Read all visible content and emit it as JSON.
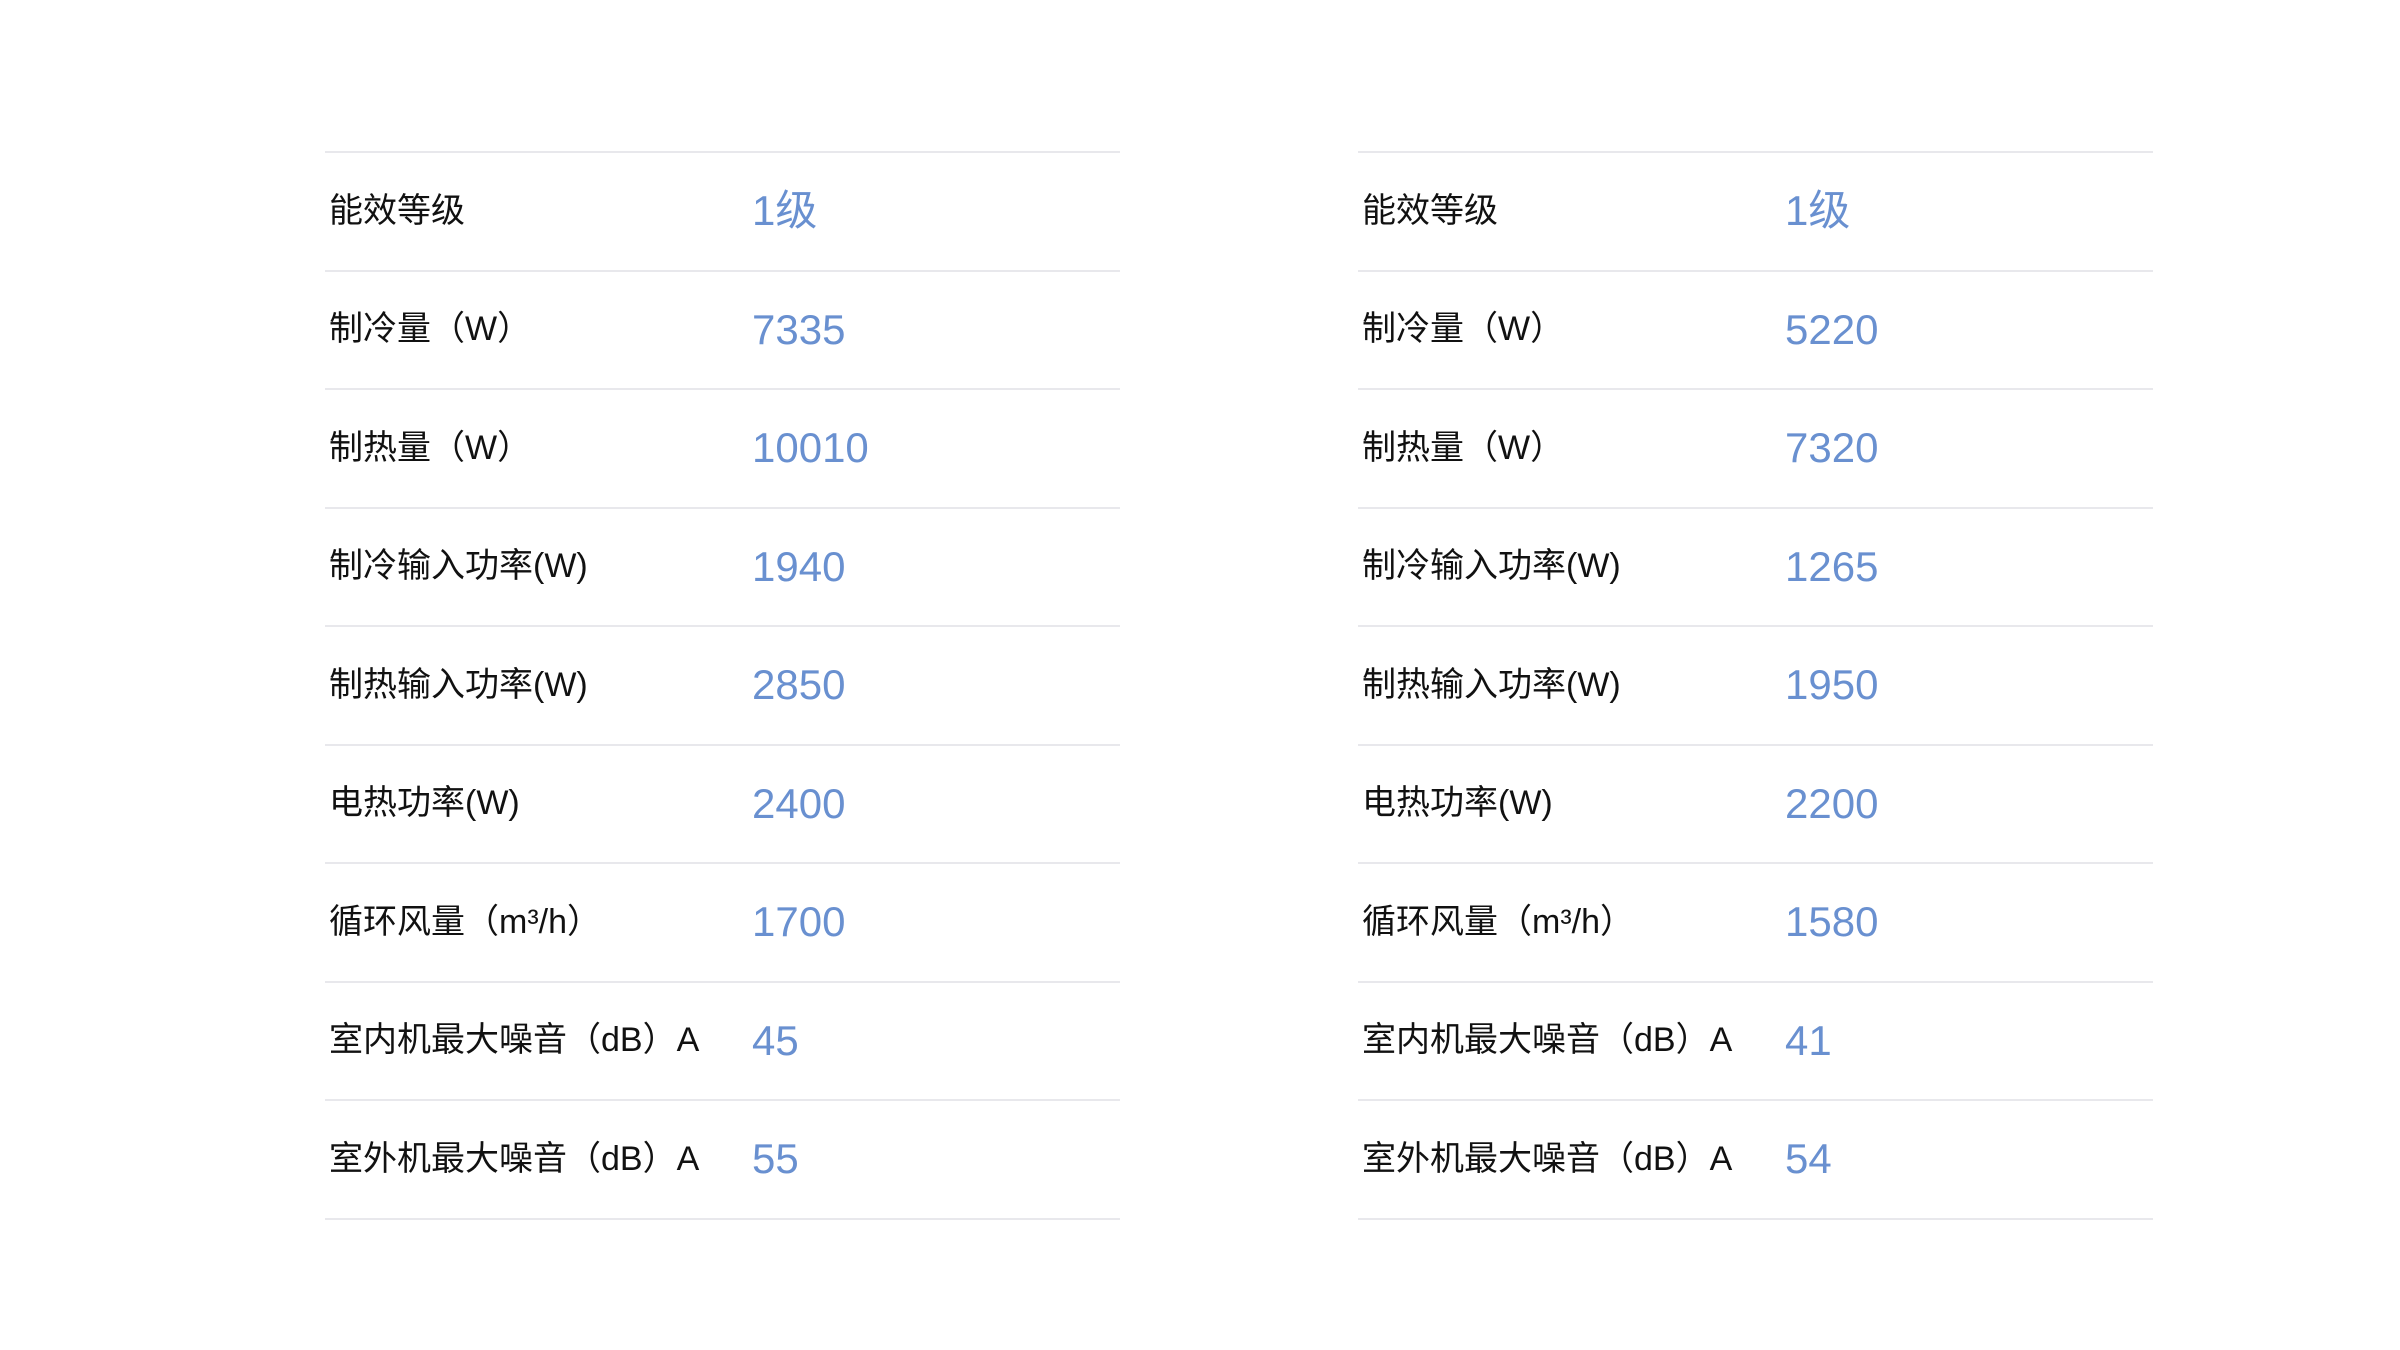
{
  "colors": {
    "background": "#ffffff",
    "label_text": "#111111",
    "value_text": "#6990d0",
    "divider": "#e8e8ec"
  },
  "spec_tables": [
    {
      "id": "product-left-specs",
      "rows": [
        {
          "label": "能效等级",
          "value": "1级"
        },
        {
          "label": "制冷量（W）",
          "value": "7335"
        },
        {
          "label": "制热量（W）",
          "value": "10010"
        },
        {
          "label": "制冷输入功率(W)",
          "value": "1940"
        },
        {
          "label": "制热输入功率(W)",
          "value": "2850"
        },
        {
          "label": "电热功率(W)",
          "value": "2400"
        },
        {
          "label": "循环风量（m³/h）",
          "value": "1700"
        },
        {
          "label": "室内机最大噪音（dB）A",
          "value": "45"
        },
        {
          "label": "室外机最大噪音（dB）A",
          "value": "55"
        }
      ]
    },
    {
      "id": "product-right-specs",
      "rows": [
        {
          "label": "能效等级",
          "value": "1级"
        },
        {
          "label": "制冷量（W）",
          "value": "5220"
        },
        {
          "label": "制热量（W）",
          "value": "7320"
        },
        {
          "label": "制冷输入功率(W)",
          "value": "1265"
        },
        {
          "label": "制热输入功率(W)",
          "value": "1950"
        },
        {
          "label": "电热功率(W)",
          "value": "2200"
        },
        {
          "label": "循环风量（m³/h）",
          "value": "1580"
        },
        {
          "label": "室内机最大噪音（dB）A",
          "value": "41"
        },
        {
          "label": "室外机最大噪音（dB）A",
          "value": "54"
        }
      ]
    }
  ]
}
